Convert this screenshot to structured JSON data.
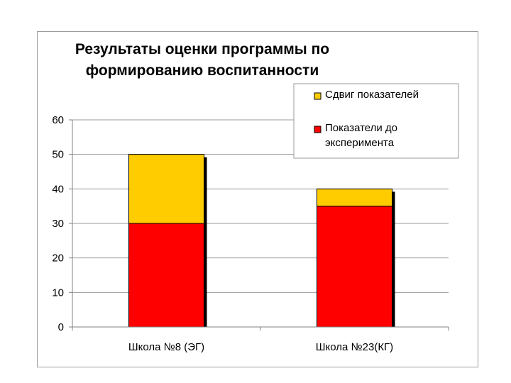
{
  "chart_data": {
    "type": "bar",
    "stacked": true,
    "title_lines": [
      "Результаты оценки программы по",
      "формированию воспитанности"
    ],
    "categories": [
      "Школа №8 (ЭГ)",
      "Школа №23(КГ)"
    ],
    "series": [
      {
        "name": "Показатели до эксперимента",
        "values": [
          30,
          35
        ],
        "color": "#ff0000"
      },
      {
        "name": "Сдвиг показателей",
        "values": [
          20,
          5
        ],
        "color": "#ffcc00"
      }
    ],
    "ylim": [
      0,
      60
    ],
    "yticks": [
      0,
      10,
      20,
      30,
      40,
      50,
      60
    ],
    "grid": true,
    "legend_position": "top-right",
    "legend": [
      {
        "lines": [
          "Сдвиг показателей"
        ],
        "color": "#ffcc00"
      },
      {
        "lines": [
          "Показатели до",
          "эксперимента"
        ],
        "color": "#ff0000"
      }
    ]
  }
}
